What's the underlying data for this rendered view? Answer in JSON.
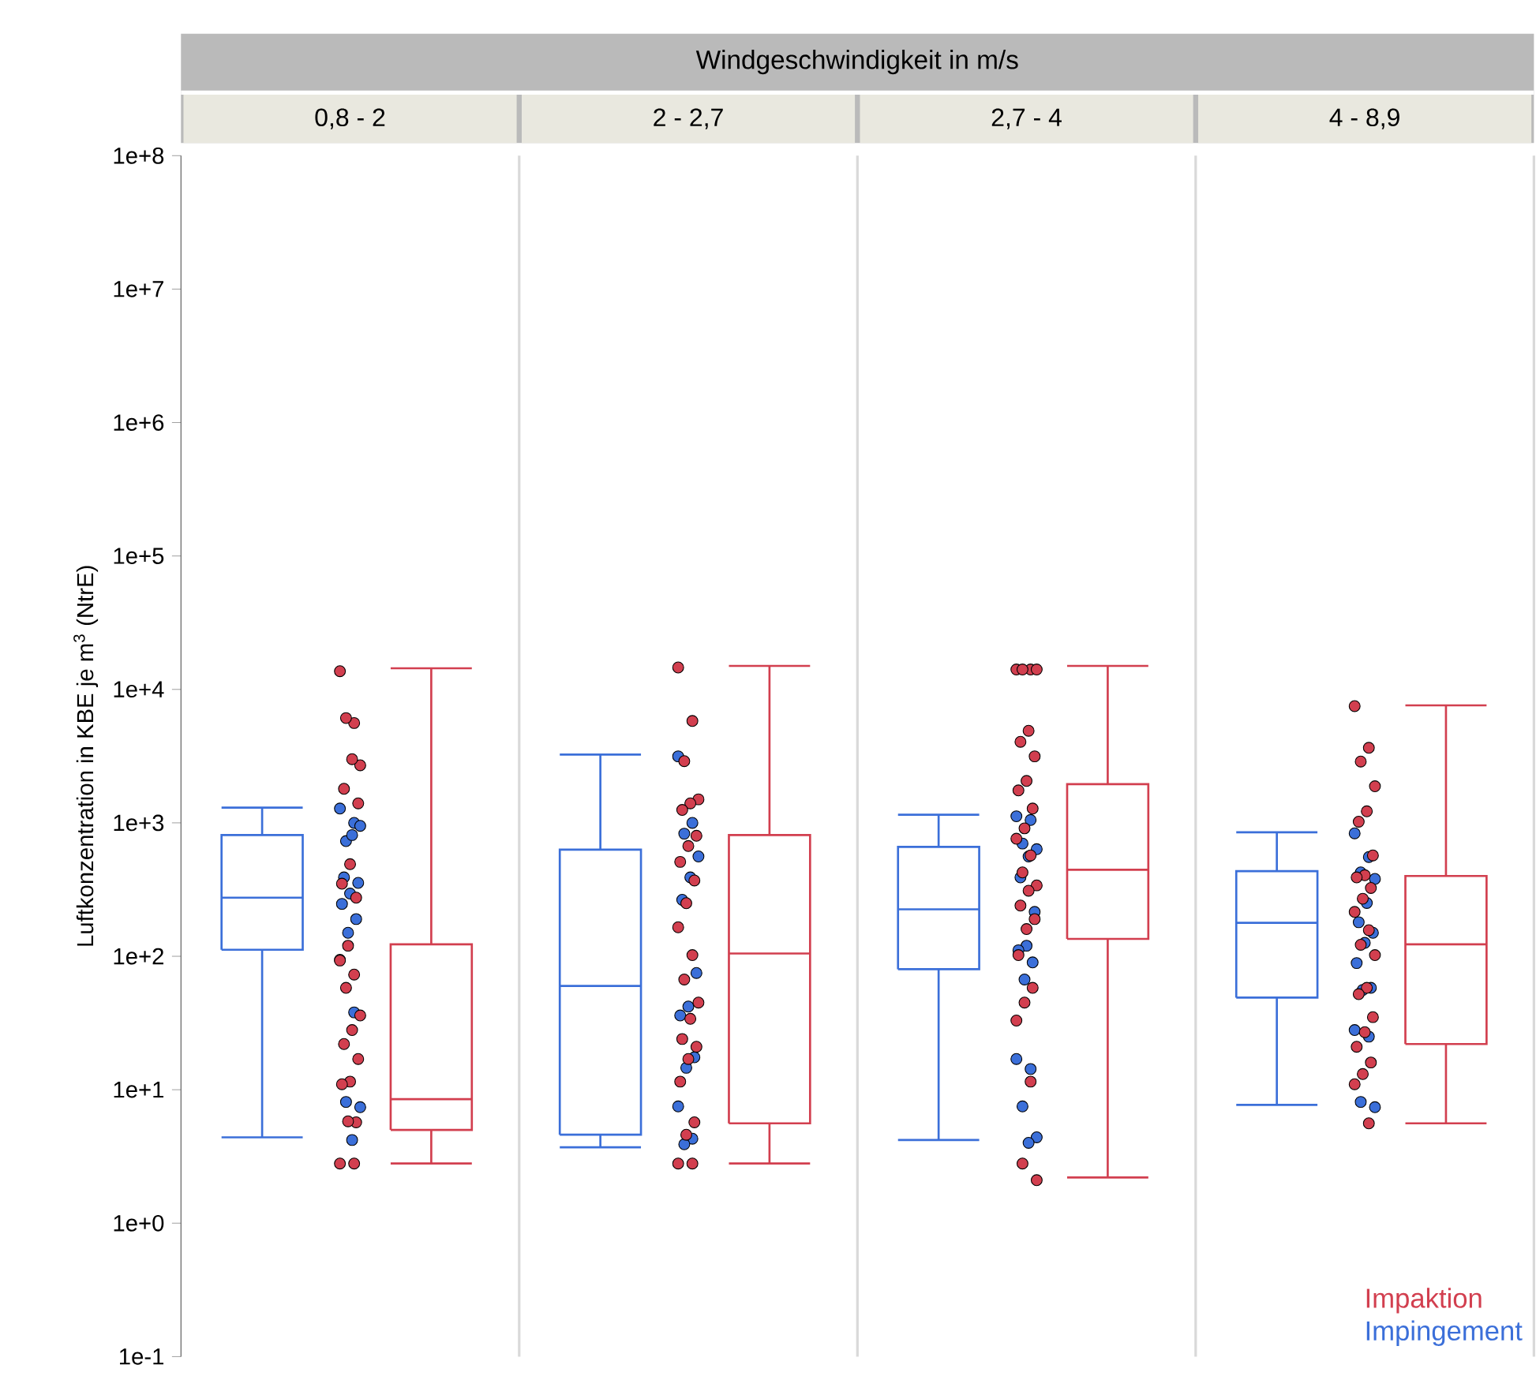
{
  "chart_data": {
    "type": "box",
    "xlabel": "Windgeschwindigkeit in m/s",
    "ylabel": "Luftkonzentration in KBE je m$^{3}$ (NtrE)",
    "categories": [
      "0,8 - 2",
      "2 - 2,7",
      "2,7 - 4",
      "4 - 8,9"
    ],
    "log": "y",
    "ylim": [
      0.1,
      100000000
    ],
    "yticks": [
      {
        "value": 0.1,
        "label": "1e-1"
      },
      {
        "value": 1,
        "label": "1e+0"
      },
      {
        "value": 10,
        "label": "1e+1"
      },
      {
        "value": 100,
        "label": "1e+2"
      },
      {
        "value": 1000,
        "label": "1e+3"
      },
      {
        "value": 10000,
        "label": "1e+4"
      },
      {
        "value": 100000,
        "label": "1e+5"
      },
      {
        "value": 1000000,
        "label": "1e+6"
      },
      {
        "value": 10000000,
        "label": "1e+7"
      },
      {
        "value": 100000000,
        "label": "1e+8"
      }
    ],
    "grid": false,
    "legend": "bottom right",
    "series": [
      {
        "name": "Impingement",
        "color": "#3b6fd9",
        "boxes": [
          {
            "low": 4.4,
            "q1": 112,
            "median": 275,
            "q3": 810,
            "high": 1300
          },
          {
            "low": 3.7,
            "q1": 4.6,
            "median": 60,
            "q3": 630,
            "high": 3250
          },
          {
            "low": 4.2,
            "q1": 80,
            "median": 225,
            "q3": 660,
            "high": 1150
          },
          {
            "low": 7.7,
            "q1": 49,
            "median": 178,
            "q3": 435,
            "high": 850
          }
        ]
      },
      {
        "name": "Impaktion",
        "color": "#d23f4f",
        "boxes": [
          {
            "low": 2.8,
            "q1": 5,
            "median": 8.5,
            "q3": 123,
            "high": 14400
          },
          {
            "low": 2.8,
            "q1": 5.6,
            "median": 105,
            "q3": 810,
            "high": 15000
          },
          {
            "low": 2.2,
            "q1": 135,
            "median": 445,
            "q3": 1950,
            "high": 15000
          },
          {
            "low": 5.6,
            "q1": 22,
            "median": 123,
            "q3": 400,
            "high": 7600
          }
        ]
      },
      {
        "type": "scatter",
        "color": "#3b6fd9",
        "x": [
          "0,8 - 2",
          "0,8 - 2",
          "0,8 - 2",
          "0,8 - 2",
          "0,8 - 2",
          "0,8 - 2",
          "0,8 - 2",
          "0,8 - 2",
          "0,8 - 2",
          "0,8 - 2",
          "0,8 - 2",
          "0,8 - 2",
          "0,8 - 2",
          "0,8 - 2",
          "0,8 - 2",
          "0,8 - 2",
          "2 - 2,7",
          "2 - 2,7",
          "2 - 2,7",
          "2 - 2,7",
          "2 - 2,7",
          "2 - 2,7",
          "2 - 2,7",
          "2 - 2,7",
          "2 - 2,7",
          "2 - 2,7",
          "2 - 2,7",
          "2 - 2,7",
          "2 - 2,7",
          "2 - 2,7",
          "2,7 - 4",
          "2,7 - 4",
          "2,7 - 4",
          "2,7 - 4",
          "2,7 - 4",
          "2,7 - 4",
          "2,7 - 4",
          "2,7 - 4",
          "2,7 - 4",
          "2,7 - 4",
          "2,7 - 4",
          "2,7 - 4",
          "2,7 - 4",
          "2,7 - 4",
          "2,7 - 4",
          "2,7 - 4",
          "4 - 8,9",
          "4 - 8,9",
          "4 - 8,9",
          "4 - 8,9",
          "4 - 8,9",
          "4 - 8,9",
          "4 - 8,9",
          "4 - 8,9",
          "4 - 8,9",
          "4 - 8,9",
          "4 - 8,9",
          "4 - 8,9",
          "4 - 8,9",
          "4 - 8,9",
          "4 - 8,9"
        ],
        "values": [
          1280,
          1000,
          730,
          950,
          810,
          390,
          355,
          295,
          247,
          190,
          150,
          94,
          38,
          8.1,
          7.4,
          4.2,
          3150,
          1000,
          830,
          560,
          390,
          265,
          75,
          42,
          36,
          17.5,
          14.6,
          7.5,
          4.3,
          3.9,
          1120,
          1050,
          700,
          635,
          560,
          390,
          215,
          120,
          111,
          90,
          67,
          17,
          14.3,
          7.5,
          4.4,
          4,
          835,
          555,
          425,
          380,
          251,
          180,
          150,
          126,
          89,
          58,
          56,
          28,
          25,
          8.1,
          7.4
        ]
      },
      {
        "type": "scatter",
        "color": "#d23f4f",
        "x": [
          "0,8 - 2",
          "0,8 - 2",
          "0,8 - 2",
          "0,8 - 2",
          "0,8 - 2",
          "0,8 - 2",
          "0,8 - 2",
          "0,8 - 2",
          "0,8 - 2",
          "0,8 - 2",
          "0,8 - 2",
          "0,8 - 2",
          "0,8 - 2",
          "0,8 - 2",
          "0,8 - 2",
          "0,8 - 2",
          "0,8 - 2",
          "0,8 - 2",
          "0,8 - 2",
          "0,8 - 2",
          "0,8 - 2",
          "0,8 - 2",
          "0,8 - 2",
          "0,8 - 2",
          "2 - 2,7",
          "2 - 2,7",
          "2 - 2,7",
          "2 - 2,7",
          "2 - 2,7",
          "2 - 2,7",
          "2 - 2,7",
          "2 - 2,7",
          "2 - 2,7",
          "2 - 2,7",
          "2 - 2,7",
          "2 - 2,7",
          "2 - 2,7",
          "2 - 2,7",
          "2 - 2,7",
          "2 - 2,7",
          "2 - 2,7",
          "2 - 2,7",
          "2 - 2,7",
          "2 - 2,7",
          "2 - 2,7",
          "2 - 2,7",
          "2 - 2,7",
          "2 - 2,7",
          "2,7 - 4",
          "2,7 - 4",
          "2,7 - 4",
          "2,7 - 4",
          "2,7 - 4",
          "2,7 - 4",
          "2,7 - 4",
          "2,7 - 4",
          "2,7 - 4",
          "2,7 - 4",
          "2,7 - 4",
          "2,7 - 4",
          "2,7 - 4",
          "2,7 - 4",
          "2,7 - 4",
          "2,7 - 4",
          "2,7 - 4",
          "2,7 - 4",
          "2,7 - 4",
          "2,7 - 4",
          "2,7 - 4",
          "2,7 - 4",
          "2,7 - 4",
          "2,7 - 4",
          "2,7 - 4",
          "2,7 - 4",
          "4 - 8,9",
          "4 - 8,9",
          "4 - 8,9",
          "4 - 8,9",
          "4 - 8,9",
          "4 - 8,9",
          "4 - 8,9",
          "4 - 8,9",
          "4 - 8,9",
          "4 - 8,9",
          "4 - 8,9",
          "4 - 8,9",
          "4 - 8,9",
          "4 - 8,9",
          "4 - 8,9",
          "4 - 8,9",
          "4 - 8,9",
          "4 - 8,9",
          "4 - 8,9",
          "4 - 8,9",
          "4 - 8,9",
          "4 - 8,9",
          "4 - 8,9",
          "4 - 8,9"
        ],
        "values": [
          13700,
          5600,
          6100,
          2700,
          3000,
          1800,
          1400,
          490,
          350,
          275,
          120,
          93,
          73,
          58,
          36,
          28,
          22,
          17,
          11.5,
          11,
          5.7,
          5.8,
          2.8,
          2.8,
          14600,
          5800,
          2900,
          1500,
          1400,
          1250,
          800,
          670,
          510,
          370,
          250,
          165,
          102,
          67,
          45,
          34,
          24,
          21,
          17,
          11.5,
          5.7,
          4.6,
          2.8,
          2.8,
          14100,
          14100,
          14100,
          14100,
          4900,
          4050,
          3150,
          2060,
          1750,
          1280,
          910,
          760,
          570,
          425,
          340,
          310,
          240,
          190,
          160,
          102,
          58,
          45,
          33,
          11.5,
          2.8,
          2.1,
          7500,
          3650,
          2880,
          1880,
          1220,
          1020,
          570,
          405,
          390,
          325,
          270,
          215,
          157,
          122,
          102,
          58,
          52,
          35,
          27,
          21,
          16,
          13.1,
          11,
          5.6
        ]
      }
    ]
  }
}
